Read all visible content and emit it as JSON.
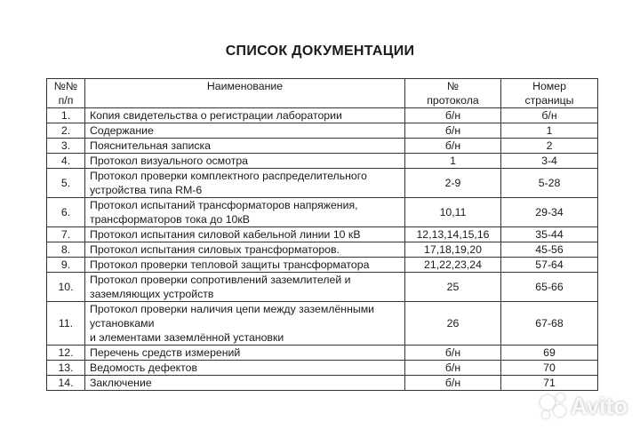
{
  "title": "СПИСОК  ДОКУМЕНТАЦИИ",
  "headers": {
    "num": [
      "№№",
      "п/п"
    ],
    "name": "Наименование",
    "protocol": [
      "№",
      "протокола"
    ],
    "page": [
      "Номер",
      "страницы"
    ]
  },
  "rows": [
    {
      "num": "1.",
      "name": [
        "Копия свидетельства о регистрации лаборатории"
      ],
      "protocol": "б/н",
      "page": "б/н"
    },
    {
      "num": "2.",
      "name": [
        "Содержание"
      ],
      "protocol": "б/н",
      "page": "1"
    },
    {
      "num": "3.",
      "name": [
        "Пояснительная записка"
      ],
      "protocol": "б/н",
      "page": "2"
    },
    {
      "num": "4.",
      "name": [
        "Протокол визуального осмотра"
      ],
      "protocol": "1",
      "page": "3-4"
    },
    {
      "num": "5.",
      "name": [
        "Протокол  проверки комплектного распределительного",
        "устройства типа RM-6"
      ],
      "protocol": "2-9",
      "page": "5-28"
    },
    {
      "num": "6.",
      "name": [
        "Протокол  испытаний трансформаторов напряжения,",
        "трансформаторов тока до 10кВ"
      ],
      "protocol": "10,11",
      "page": "29-34"
    },
    {
      "num": "7.",
      "name": [
        "Протокол испытания силовой  кабельной линии 10 кВ"
      ],
      "protocol": "12,13,14,15,16",
      "page": "35-44"
    },
    {
      "num": "8.",
      "name": [
        "Протокол испытания силовых трансформаторов."
      ],
      "protocol": "17,18,19,20",
      "page": "45-56"
    },
    {
      "num": "9.",
      "name": [
        "Протокол проверки тепловой защиты трансформатора"
      ],
      "protocol": "21,22,23,24",
      "page": "57-64"
    },
    {
      "num": "10.",
      "name": [
        "Протокол проверки сопротивлений заземлителей и",
        "заземляющих устройств"
      ],
      "protocol": "25",
      "page": "65-66"
    },
    {
      "num": "11.",
      "name": [
        "Протокол проверки наличия цепи между заземлёнными",
        "установками",
        "и элементами заземлённой установки"
      ],
      "protocol": "26",
      "page": "67-68"
    },
    {
      "num": "12.",
      "name": [
        "Перечень средств измерений"
      ],
      "protocol": "б/н",
      "page": "69"
    },
    {
      "num": "13.",
      "name": [
        "Ведомость дефектов"
      ],
      "protocol": "б/н",
      "page": "70"
    },
    {
      "num": "14.",
      "name": [
        "Заключение"
      ],
      "protocol": "б/н",
      "page": "71"
    }
  ],
  "watermark": "Avito"
}
